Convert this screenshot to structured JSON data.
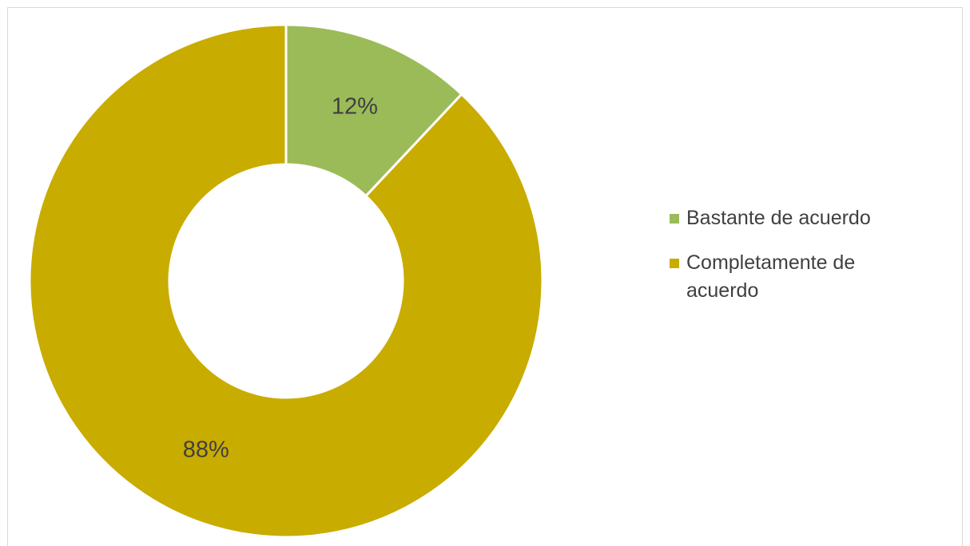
{
  "chart_data": {
    "type": "pie",
    "donut": true,
    "categories": [
      "Bastante de acuerdo",
      "Completamente de acuerdo"
    ],
    "values": [
      12,
      88
    ],
    "labels": [
      "12%",
      "88%"
    ],
    "colors": [
      "#9bbb59",
      "#c9ac00"
    ],
    "title": "",
    "legend": {
      "position": "right",
      "items": [
        {
          "label": "Bastante de acuerdo",
          "color": "#9bbb59"
        },
        {
          "label": "Completamente de acuerdo",
          "color": "#c9ac00"
        }
      ]
    }
  }
}
